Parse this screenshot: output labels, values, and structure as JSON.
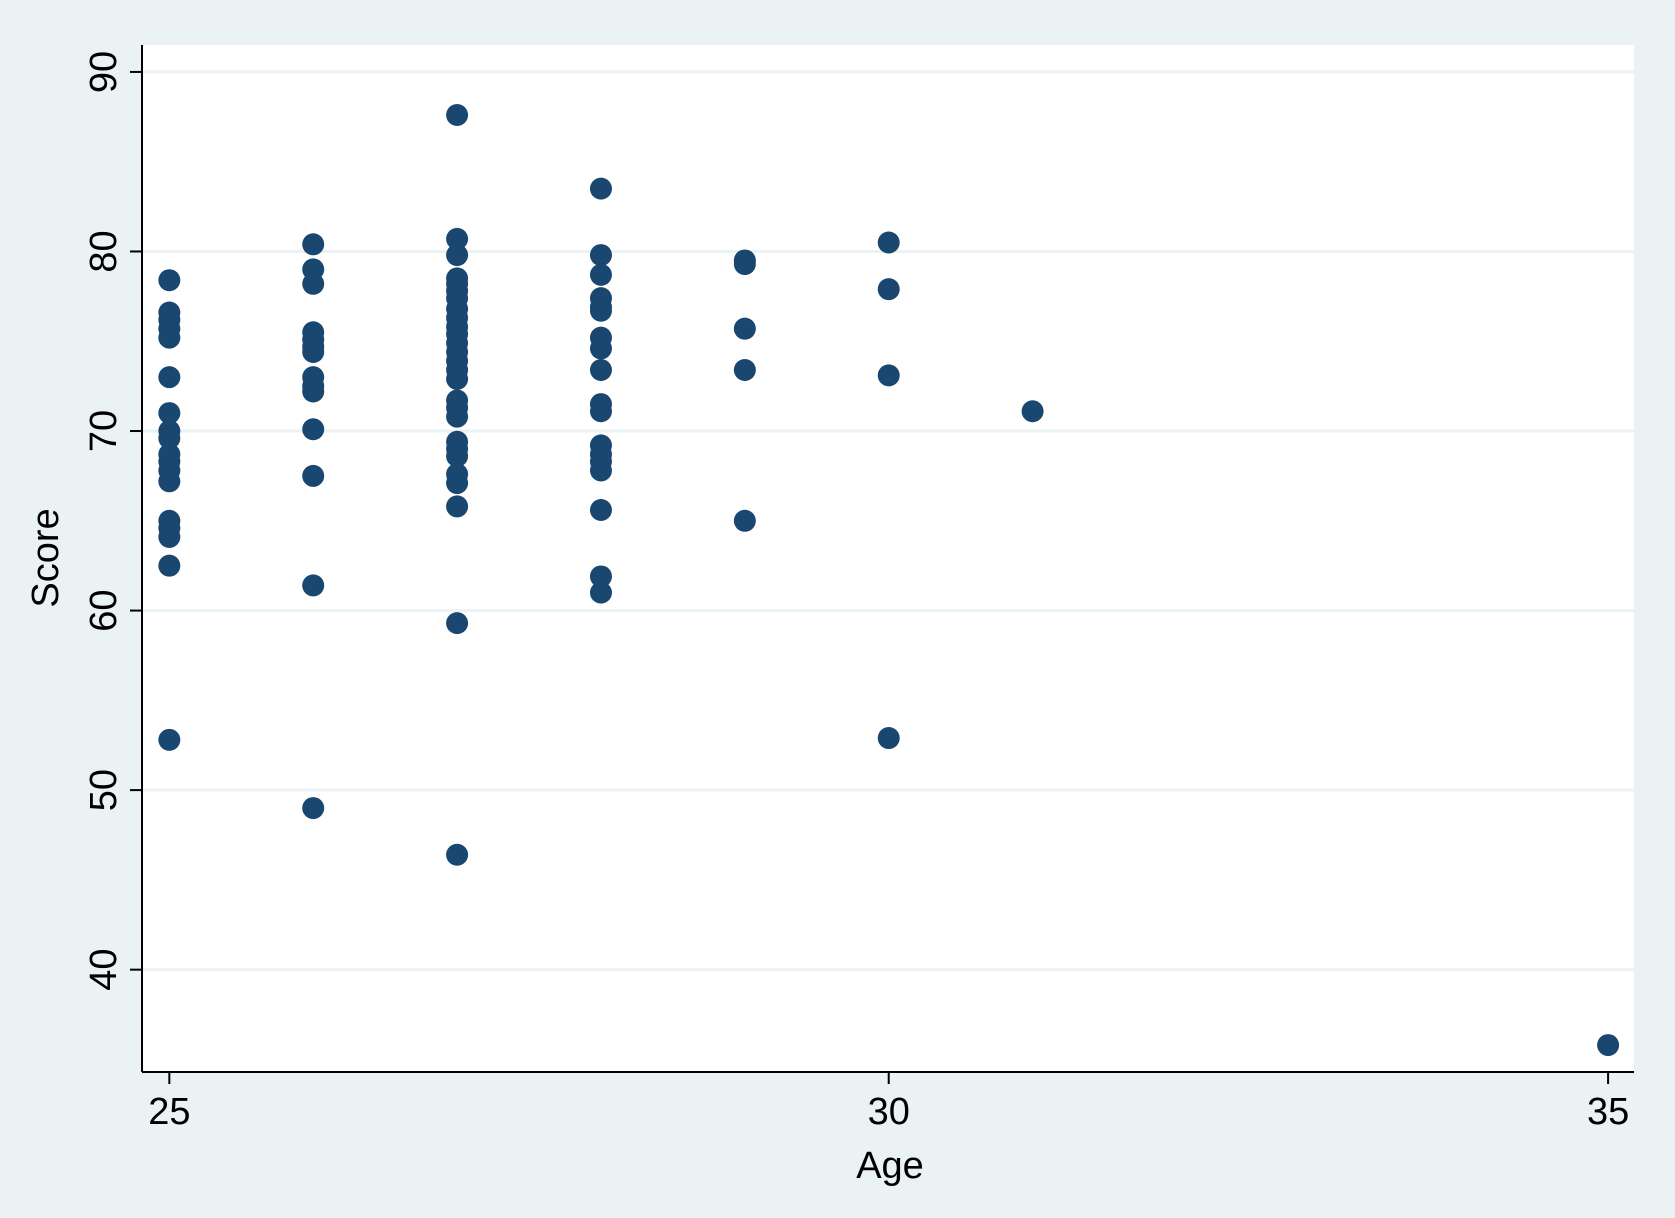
{
  "chart_data": {
    "type": "scatter",
    "x_label": "Age",
    "y_label": "Score",
    "color": "#1a476f",
    "grid": true,
    "xlim": [
      24.81,
      35.18
    ],
    "ylim": [
      34.3,
      91.5
    ],
    "xticks": [
      25,
      30,
      35
    ],
    "yticks": [
      40,
      50,
      60,
      70,
      80,
      90
    ],
    "x": [
      25,
      25,
      25,
      25,
      25,
      25,
      25,
      25,
      25,
      25,
      25,
      25,
      25,
      25,
      25,
      25,
      25,
      25,
      26,
      26,
      26,
      26,
      26,
      26,
      26,
      26,
      26,
      26,
      26,
      26,
      26,
      26,
      27,
      27,
      27,
      27,
      27,
      27,
      27,
      27,
      27,
      27,
      27,
      27,
      27,
      27,
      27,
      27,
      27,
      27,
      27,
      27,
      27,
      27,
      27,
      27,
      27,
      27,
      27,
      28,
      28,
      28,
      28,
      28,
      28,
      28,
      28,
      28,
      28,
      28,
      28,
      28,
      28,
      28,
      28,
      28,
      28,
      29,
      29,
      29,
      29,
      29,
      30,
      30,
      30,
      30,
      31,
      35
    ],
    "y": [
      78.4,
      76.6,
      76.2,
      75.7,
      75.2,
      73.0,
      71.0,
      70.0,
      69.6,
      68.7,
      68.3,
      67.8,
      67.2,
      65.0,
      64.6,
      64.1,
      62.5,
      52.8,
      80.4,
      79.0,
      78.2,
      75.5,
      75.1,
      74.7,
      74.4,
      73.0,
      72.5,
      72.2,
      70.1,
      67.5,
      61.4,
      49.0,
      87.6,
      80.7,
      79.8,
      78.5,
      78.2,
      77.8,
      77.4,
      76.8,
      76.3,
      75.8,
      75.4,
      74.9,
      74.4,
      73.9,
      73.4,
      72.9,
      71.7,
      71.3,
      70.8,
      69.4,
      69.0,
      68.6,
      67.6,
      67.1,
      65.8,
      59.3,
      46.4,
      83.5,
      79.8,
      78.7,
      77.4,
      76.9,
      76.7,
      75.2,
      74.6,
      73.4,
      71.5,
      71.1,
      69.2,
      68.7,
      68.3,
      67.8,
      65.6,
      61.9,
      61.0,
      79.5,
      79.3,
      75.7,
      73.4,
      65.0,
      80.5,
      77.9,
      73.1,
      52.9,
      71.1,
      35.8
    ]
  }
}
